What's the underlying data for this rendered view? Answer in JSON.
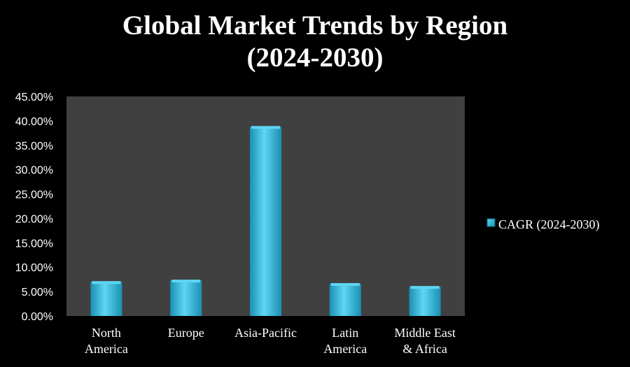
{
  "chart_data": {
    "type": "bar",
    "title": [
      "Global Market Trends by Region",
      "(2024-2030)"
    ],
    "categories": [
      [
        "North",
        "America"
      ],
      [
        "Europe"
      ],
      [
        "Asia-Pacific"
      ],
      [
        "Latin",
        "America"
      ],
      [
        "Middle East",
        "& Africa"
      ]
    ],
    "series": [
      {
        "name": "CAGR (2024-2030)",
        "values": [
          7.0,
          7.3,
          38.8,
          6.6,
          6.0
        ]
      }
    ],
    "ylim": [
      0,
      45
    ],
    "yticks": [
      "0.00%",
      "5.00%",
      "10.00%",
      "15.00%",
      "20.00%",
      "25.00%",
      "30.00%",
      "35.00%",
      "40.00%",
      "45.00%"
    ],
    "legend_position": "right",
    "grid": false,
    "colors": {
      "bar_light": "#5fd6f2",
      "bar_mid": "#2bb8de",
      "bar_dark": "#1a8fb3",
      "plot_bg": "#404040",
      "page_bg": "#000000",
      "text": "#ffffff"
    }
  }
}
